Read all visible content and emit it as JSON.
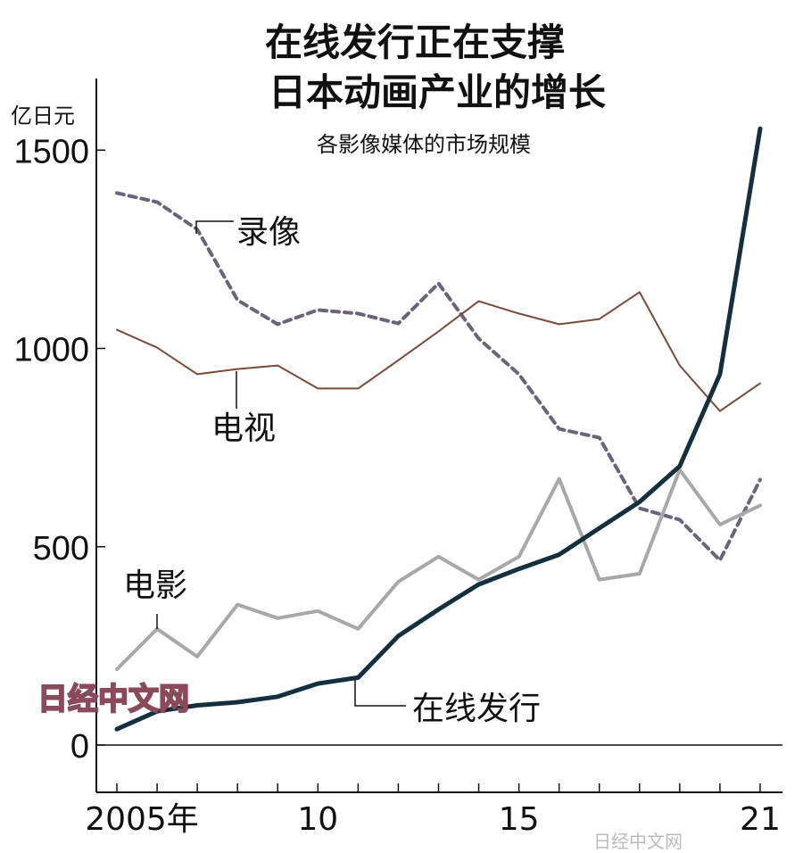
{
  "chart_data": {
    "type": "line",
    "title": "在线发行正在支撑\n日本动画产业的增长",
    "title_lines": [
      "在线发行正在支撑",
      "日本动画产业的增长"
    ],
    "subtitle": "各影像媒体的市场规模",
    "ylabel": "亿日元",
    "xlabel": "",
    "ylim": [
      0,
      1700
    ],
    "xlim": [
      2005,
      2021
    ],
    "yticks": [
      0,
      500,
      1000,
      1500
    ],
    "ytick_labels": [
      "0",
      "500",
      "1000",
      "1500"
    ],
    "xtick_labels": [
      {
        "x": 2005,
        "label": "2005年"
      },
      {
        "x": 2010,
        "label": "10"
      },
      {
        "x": 2015,
        "label": "15"
      },
      {
        "x": 2021,
        "label": "21"
      }
    ],
    "grid": false,
    "legend": "inline labels",
    "x": [
      2005,
      2006,
      2007,
      2008,
      2009,
      2010,
      2011,
      2012,
      2013,
      2014,
      2015,
      2016,
      2017,
      2018,
      2019,
      2020,
      2021
    ],
    "series": [
      {
        "name": "录像",
        "color": "#6b6378",
        "style": "dashed",
        "values": [
          1392,
          1369,
          1300,
          1122,
          1061,
          1097,
          1088,
          1063,
          1164,
          1025,
          935,
          797,
          775,
          597,
          568,
          466,
          669
        ]
      },
      {
        "name": "电视",
        "color": "#7a4a3a",
        "style": "solid-thin",
        "values": [
          1047,
          1002,
          935,
          948,
          957,
          899,
          899,
          970,
          1043,
          1119,
          1088,
          1061,
          1074,
          1142,
          957,
          842,
          912
        ]
      },
      {
        "name": "电影",
        "color": "#a8a8a8",
        "style": "solid",
        "values": [
          191,
          293,
          223,
          354,
          320,
          338,
          293,
          412,
          475,
          417,
          475,
          671,
          417,
          432,
          694,
          556,
          604
        ]
      },
      {
        "name": "在线发行",
        "color": "#14303d",
        "style": "solid-thick",
        "values": [
          40,
          85,
          100,
          108,
          122,
          155,
          170,
          275,
          342,
          405,
          444,
          480,
          547,
          613,
          703,
          935,
          1554
        ]
      }
    ]
  },
  "watermark": "日经中文网",
  "watermark_corner": "日经中文网"
}
